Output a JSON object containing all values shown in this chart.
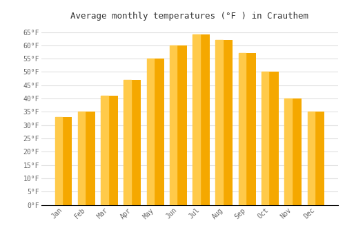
{
  "title": "Average monthly temperatures (°F ) in Crauthem",
  "months": [
    "Jan",
    "Feb",
    "Mar",
    "Apr",
    "May",
    "Jun",
    "Jul",
    "Aug",
    "Sep",
    "Oct",
    "Nov",
    "Dec"
  ],
  "values": [
    33,
    35,
    41,
    47,
    55,
    60,
    64,
    62,
    57,
    50,
    40,
    35
  ],
  "bar_color_left": "#FFCA4A",
  "bar_color_main": "#F5A800",
  "background_color": "#FFFFFF",
  "grid_color": "#E0E0E0",
  "axis_color": "#AAAAAA",
  "ylim": [
    0,
    68
  ],
  "yticks": [
    0,
    5,
    10,
    15,
    20,
    25,
    30,
    35,
    40,
    45,
    50,
    55,
    60,
    65
  ],
  "ytick_labels": [
    "0°F",
    "5°F",
    "10°F",
    "15°F",
    "20°F",
    "25°F",
    "30°F",
    "35°F",
    "40°F",
    "45°F",
    "50°F",
    "55°F",
    "60°F",
    "65°F"
  ],
  "title_fontsize": 9,
  "tick_fontsize": 7,
  "font_family": "monospace",
  "bar_width": 0.75
}
